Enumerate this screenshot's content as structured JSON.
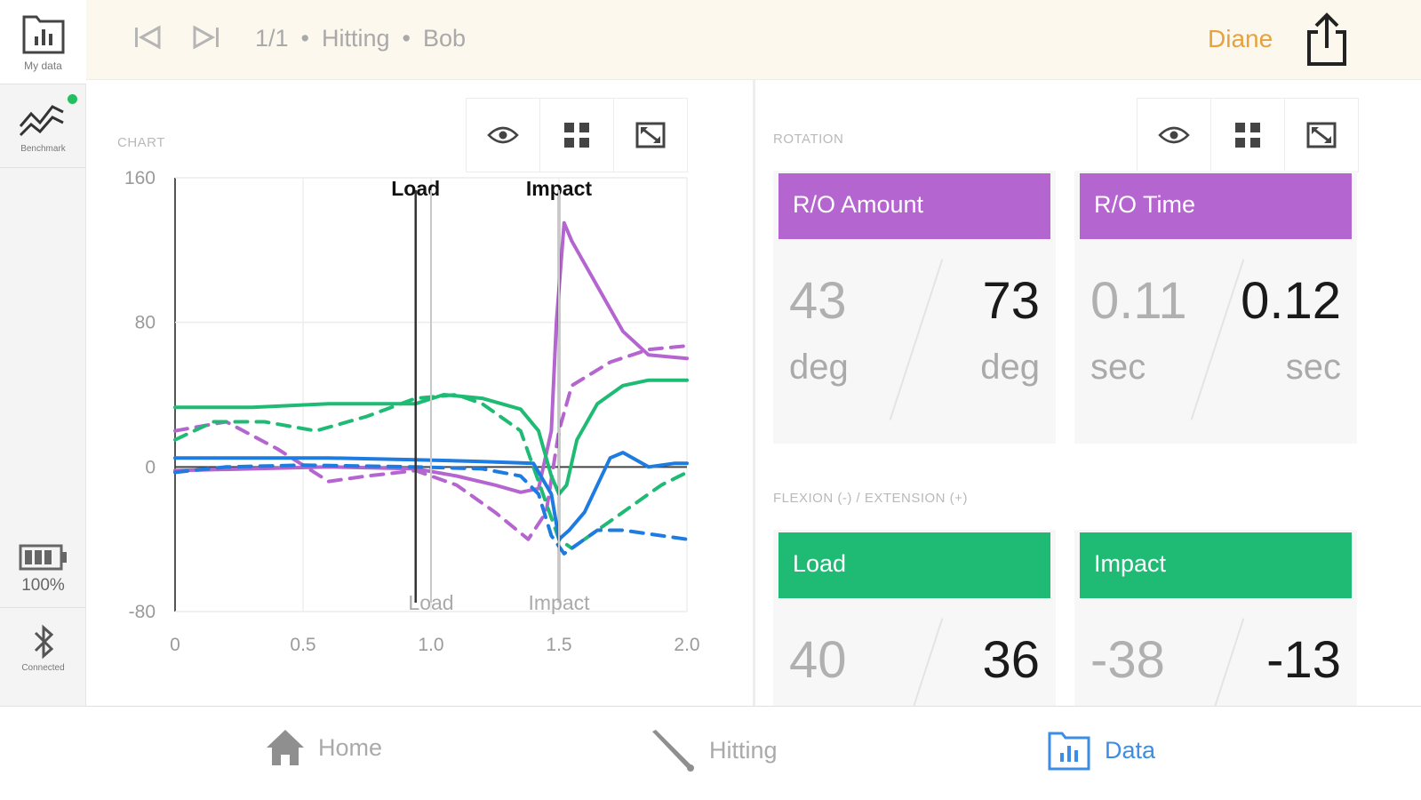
{
  "rail": {
    "items": [
      {
        "label": "My data"
      },
      {
        "label": "Benchmark"
      },
      {
        "label": "100%"
      },
      {
        "label": "Connected"
      }
    ]
  },
  "topbar": {
    "counter": "1/1",
    "mode": "Hitting",
    "player": "Bob",
    "user": "Diane"
  },
  "chart_panel": {
    "label": "CHART"
  },
  "rotation": {
    "label": "ROTATION",
    "cards": [
      {
        "title": "R/O Amount",
        "left_value": "43",
        "left_unit": "deg",
        "right_value": "73",
        "right_unit": "deg"
      },
      {
        "title": "R/O Time",
        "left_value": "0.11",
        "left_unit": "sec",
        "right_value": "0.12",
        "right_unit": "sec"
      }
    ]
  },
  "flexion": {
    "label": "FLEXION (-) / EXTENSION (+)",
    "cards": [
      {
        "title": "Load",
        "left_value": "40",
        "right_value": "36"
      },
      {
        "title": "Impact",
        "left_value": "-38",
        "right_value": "-13"
      }
    ]
  },
  "tabs": [
    {
      "label": "Home"
    },
    {
      "label": "Hitting"
    },
    {
      "label": "Data"
    }
  ],
  "colors": {
    "accent": "#3b8de6",
    "user": "#e6a23c",
    "purple": "#b565cf",
    "green": "#1fbb74",
    "blue": "#1e7be0"
  },
  "chart_data": {
    "type": "line",
    "title": "",
    "xlabel": "",
    "ylabel": "",
    "xlim": [
      0,
      2.0
    ],
    "ylim": [
      -80,
      160
    ],
    "x_ticks": [
      "0",
      "0.5",
      "1.0",
      "1.5",
      "2.0"
    ],
    "y_ticks": [
      "160",
      "80",
      "0",
      "-80"
    ],
    "grid": true,
    "markers": [
      {
        "label": "Load",
        "x": 0.94
      },
      {
        "label": "Impact",
        "x": 1.5
      }
    ],
    "bottom_markers": [
      {
        "label": "Load",
        "x": 1.0
      },
      {
        "label": "Impact",
        "x": 1.5
      }
    ],
    "series": [
      {
        "color": "purple",
        "style": "solid",
        "points": [
          [
            0,
            -2
          ],
          [
            0.3,
            -1
          ],
          [
            0.6,
            0
          ],
          [
            0.94,
            -1
          ],
          [
            1.1,
            -5
          ],
          [
            1.25,
            -10
          ],
          [
            1.35,
            -14
          ],
          [
            1.42,
            -12
          ],
          [
            1.47,
            20
          ],
          [
            1.49,
            80
          ],
          [
            1.52,
            135
          ],
          [
            1.55,
            125
          ],
          [
            1.65,
            100
          ],
          [
            1.75,
            75
          ],
          [
            1.85,
            62
          ],
          [
            2.0,
            60
          ]
        ]
      },
      {
        "color": "purple",
        "style": "dashed",
        "points": [
          [
            0,
            20
          ],
          [
            0.2,
            25
          ],
          [
            0.4,
            10
          ],
          [
            0.6,
            -8
          ],
          [
            0.75,
            -5
          ],
          [
            0.94,
            -2
          ],
          [
            1.1,
            -10
          ],
          [
            1.25,
            -25
          ],
          [
            1.38,
            -40
          ],
          [
            1.45,
            -25
          ],
          [
            1.5,
            20
          ],
          [
            1.55,
            45
          ],
          [
            1.7,
            58
          ],
          [
            1.85,
            65
          ],
          [
            2.0,
            67
          ]
        ]
      },
      {
        "color": "green",
        "style": "solid",
        "points": [
          [
            0,
            33
          ],
          [
            0.3,
            33
          ],
          [
            0.6,
            35
          ],
          [
            0.94,
            35
          ],
          [
            1.05,
            40
          ],
          [
            1.2,
            38
          ],
          [
            1.35,
            32
          ],
          [
            1.42,
            20
          ],
          [
            1.47,
            -5
          ],
          [
            1.5,
            -15
          ],
          [
            1.53,
            -10
          ],
          [
            1.57,
            15
          ],
          [
            1.65,
            35
          ],
          [
            1.75,
            45
          ],
          [
            1.85,
            48
          ],
          [
            2.0,
            48
          ]
        ]
      },
      {
        "color": "green",
        "style": "dashed",
        "points": [
          [
            0,
            15
          ],
          [
            0.15,
            25
          ],
          [
            0.35,
            25
          ],
          [
            0.55,
            20
          ],
          [
            0.75,
            28
          ],
          [
            0.94,
            38
          ],
          [
            1.1,
            40
          ],
          [
            1.2,
            35
          ],
          [
            1.35,
            20
          ],
          [
            1.45,
            -20
          ],
          [
            1.5,
            -40
          ],
          [
            1.55,
            -45
          ],
          [
            1.65,
            -35
          ],
          [
            1.8,
            -20
          ],
          [
            1.9,
            -10
          ],
          [
            2.0,
            -3
          ]
        ]
      },
      {
        "color": "blue",
        "style": "solid",
        "points": [
          [
            0,
            5
          ],
          [
            0.3,
            5
          ],
          [
            0.6,
            5
          ],
          [
            0.94,
            4
          ],
          [
            1.2,
            3
          ],
          [
            1.4,
            2
          ],
          [
            1.47,
            -15
          ],
          [
            1.5,
            -40
          ],
          [
            1.54,
            -35
          ],
          [
            1.6,
            -25
          ],
          [
            1.7,
            5
          ],
          [
            1.75,
            8
          ],
          [
            1.85,
            0
          ],
          [
            1.95,
            2
          ],
          [
            2.0,
            2
          ]
        ]
      },
      {
        "color": "blue",
        "style": "dashed",
        "points": [
          [
            0,
            -3
          ],
          [
            0.2,
            0
          ],
          [
            0.5,
            1
          ],
          [
            0.94,
            0
          ],
          [
            1.2,
            -1
          ],
          [
            1.35,
            -5
          ],
          [
            1.42,
            -15
          ],
          [
            1.47,
            -38
          ],
          [
            1.52,
            -48
          ],
          [
            1.58,
            -42
          ],
          [
            1.65,
            -35
          ],
          [
            1.75,
            -35
          ],
          [
            1.9,
            -38
          ],
          [
            2.0,
            -40
          ]
        ]
      }
    ]
  }
}
